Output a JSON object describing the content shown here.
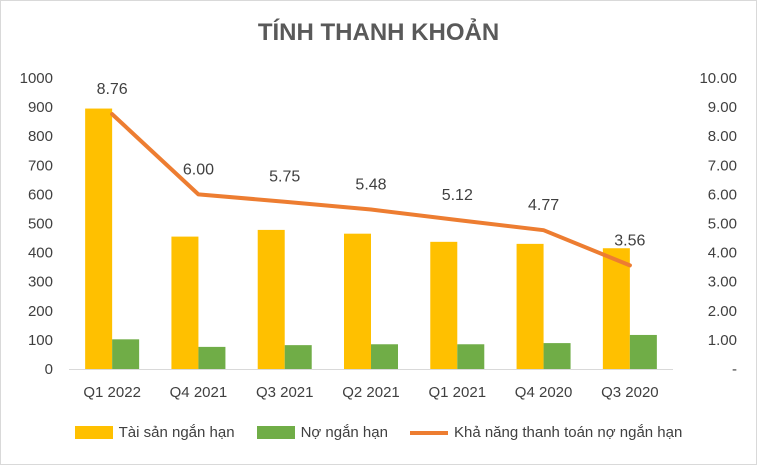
{
  "chart_data": {
    "type": "bar",
    "title": "TÍNH THANH KHOẢN",
    "categories": [
      "Q1 2022",
      "Q4 2021",
      "Q3 2021",
      "Q2 2021",
      "Q1 2021",
      "Q4 2020",
      "Q3 2020"
    ],
    "series": [
      {
        "name": "Tài sản ngắn hạn",
        "type": "bar",
        "axis": "left",
        "color": "#FFC000",
        "values": [
          895,
          455,
          478,
          465,
          437,
          430,
          415
        ]
      },
      {
        "name": "Nợ ngắn hạn",
        "type": "bar",
        "axis": "left",
        "color": "#70AD47",
        "values": [
          102,
          76,
          82,
          85,
          85,
          89,
          117
        ]
      },
      {
        "name": "Khả năng thanh toán nợ ngắn hạn",
        "type": "line",
        "axis": "right",
        "color": "#ED7D31",
        "values": [
          8.76,
          6.0,
          5.75,
          5.48,
          5.12,
          4.77,
          3.56
        ],
        "labels": [
          "8.76",
          "6.00",
          "5.75",
          "5.48",
          "5.12",
          "4.77",
          "3.56"
        ]
      }
    ],
    "ylim": [
      0,
      1000
    ],
    "y_ticks": [
      "0",
      "100",
      "200",
      "300",
      "400",
      "500",
      "600",
      "700",
      "800",
      "900",
      "1000"
    ],
    "y2lim": [
      0,
      10
    ],
    "y2_ticks": [
      "-",
      "1.00",
      "2.00",
      "3.00",
      "4.00",
      "5.00",
      "6.00",
      "7.00",
      "8.00",
      "9.00",
      "10.00"
    ],
    "grid": false,
    "legend_position": "bottom"
  }
}
